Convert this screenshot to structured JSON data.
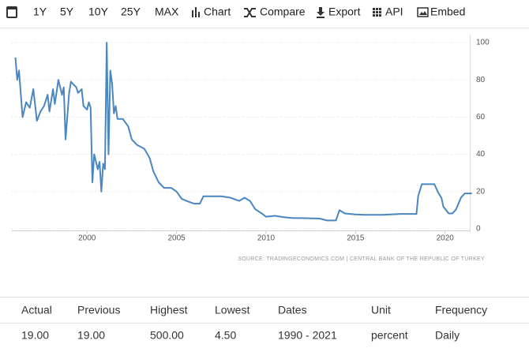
{
  "toolbar": {
    "items": [
      "1Y",
      "5Y",
      "10Y",
      "25Y",
      "MAX",
      "Chart",
      "Compare",
      "Export",
      "API",
      "Embed"
    ]
  },
  "chart_data": {
    "type": "line",
    "color": "#4a86c0",
    "grid": true,
    "source": "SOURCE: TRADINGECONOMICS.COM  |  CENTRAL BANK OF THE REPUBLIC OF TURKEY",
    "x": [
      1996.0,
      1996.1,
      1996.2,
      1996.4,
      1996.6,
      1996.8,
      1997.0,
      1997.2,
      1997.4,
      1997.6,
      1997.8,
      1997.9,
      1998.1,
      1998.2,
      1998.4,
      1998.6,
      1998.7,
      1998.8,
      1999.0,
      1999.1,
      1999.4,
      1999.5,
      1999.7,
      1999.8,
      2000.0,
      2000.1,
      2000.2,
      2000.3,
      2000.4,
      2000.6,
      2000.7,
      2000.8,
      2000.9,
      2001.0,
      2001.1,
      2001.2,
      2001.3,
      2001.4,
      2001.5,
      2001.6,
      2001.7,
      2002.0,
      2002.3,
      2002.5,
      2002.8,
      2003.2,
      2003.5,
      2003.7,
      2004.0,
      2004.3,
      2004.7,
      2005.0,
      2005.3,
      2005.7,
      2006.0,
      2006.3,
      2006.5,
      2007.5,
      2008.0,
      2008.5,
      2008.8,
      2009.1,
      2009.4,
      2009.8,
      2010.0,
      2010.5,
      2011.0,
      2011.5,
      2012.0,
      2013.0,
      2013.4,
      2013.9,
      2014.1,
      2014.4,
      2015.0,
      2015.5,
      2016.5,
      2017.5,
      2018.0,
      2018.4,
      2018.5,
      2018.7,
      2019.4,
      2019.6,
      2019.8,
      2019.9,
      2020.0,
      2020.2,
      2020.4,
      2020.6,
      2020.9,
      2021.1,
      2021.5
    ],
    "values": [
      92,
      80,
      85,
      60,
      68,
      65,
      75,
      58,
      63,
      66,
      72,
      63,
      75,
      67,
      80,
      72,
      76,
      48,
      73,
      79,
      76,
      73,
      75,
      66,
      64,
      68,
      65,
      25,
      40,
      32,
      36,
      20,
      35,
      32,
      100,
      40,
      85,
      78,
      62,
      66,
      59,
      59,
      55,
      48,
      45,
      43,
      38,
      31,
      25,
      22,
      22,
      20,
      16,
      14.5,
      13.5,
      13.5,
      17.5,
      17.5,
      16.75,
      15,
      16.75,
      15,
      10.5,
      8,
      6.5,
      7,
      6.25,
      5.75,
      5.75,
      5.5,
      4.5,
      4.5,
      10,
      8.25,
      7.75,
      7.5,
      7.5,
      8,
      8,
      8,
      17.75,
      24,
      24,
      19.75,
      16.5,
      12,
      10.75,
      8.25,
      8.25,
      10.25,
      17,
      19,
      19
    ],
    "xlim": [
      1995.8,
      2021.6
    ],
    "xticks": [
      2000,
      2005,
      2010,
      2015,
      2020
    ],
    "ylim": [
      0,
      100
    ],
    "yticks": [
      0,
      20,
      40,
      60,
      80,
      100
    ]
  },
  "table": {
    "headers": [
      "Actual",
      "Previous",
      "Highest",
      "Lowest",
      "Dates",
      "Unit",
      "Frequency"
    ],
    "rows": [
      [
        "19.00",
        "19.00",
        "500.00",
        "4.50",
        "1990 - 2021",
        "percent",
        "Daily"
      ]
    ]
  }
}
